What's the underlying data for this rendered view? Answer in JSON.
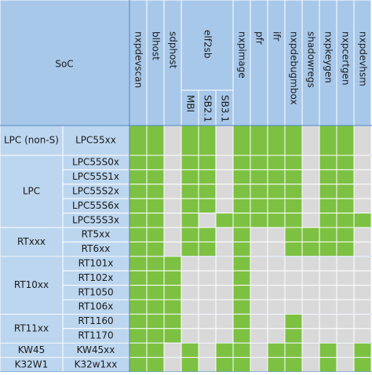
{
  "header": {
    "soc": "SoC",
    "tools": [
      {
        "name": "nxpdevscan"
      },
      {
        "name": "blhost"
      },
      {
        "name": "sdphost"
      },
      {
        "name": "elf2sb",
        "sub": [
          "MBI",
          "SB2.1",
          "SB3.1"
        ]
      },
      {
        "name": "nxpimage"
      },
      {
        "name": "pfr"
      },
      {
        "name": "ifr"
      },
      {
        "name": "nxpdebugmbox"
      },
      {
        "name": "shadowregs"
      },
      {
        "name": "nxpkeygen"
      },
      {
        "name": "nxpcertgen"
      },
      {
        "name": "nxpdevhsm"
      }
    ]
  },
  "groups": [
    {
      "family": "LPC (non-S)",
      "chips": [
        "LPC55xx"
      ]
    },
    {
      "family": "LPC",
      "chips": [
        "LPC55S0x",
        "LPC55S1x",
        "LPC55S2x",
        "LPC55S6x",
        "LPC55S3x"
      ]
    },
    {
      "family": "RTxxx",
      "chips": [
        "RT5xx",
        "RT6xx"
      ]
    },
    {
      "family": "RT10xx",
      "chips": [
        "RT101x",
        "RT102x",
        "RT1050",
        "RT106x"
      ]
    },
    {
      "family": "RT11xx",
      "chips": [
        "RT1160",
        "RT1170"
      ]
    },
    {
      "family": "KW45",
      "chips": [
        "KW45xx"
      ]
    },
    {
      "family": "K32W1",
      "chips": [
        "K32w1xx"
      ]
    }
  ],
  "support": [
    [
      1,
      1,
      0,
      1,
      1,
      0,
      1,
      1,
      1,
      1,
      0,
      1,
      1,
      0
    ],
    [
      1,
      1,
      0,
      1,
      1,
      0,
      1,
      1,
      1,
      1,
      0,
      1,
      1,
      0
    ],
    [
      1,
      1,
      0,
      1,
      1,
      0,
      1,
      1,
      1,
      1,
      0,
      1,
      1,
      0
    ],
    [
      1,
      1,
      0,
      1,
      1,
      0,
      1,
      1,
      1,
      1,
      0,
      1,
      1,
      0
    ],
    [
      1,
      1,
      0,
      1,
      1,
      0,
      1,
      1,
      1,
      1,
      0,
      1,
      1,
      0
    ],
    [
      1,
      1,
      0,
      1,
      0,
      1,
      1,
      1,
      1,
      1,
      0,
      1,
      1,
      1
    ],
    [
      1,
      1,
      0,
      1,
      1,
      0,
      1,
      0,
      0,
      1,
      1,
      1,
      1,
      0
    ],
    [
      1,
      1,
      0,
      1,
      1,
      0,
      1,
      0,
      0,
      1,
      1,
      1,
      1,
      0
    ],
    [
      1,
      1,
      1,
      0,
      0,
      0,
      1,
      0,
      0,
      0,
      0,
      0,
      0,
      0
    ],
    [
      1,
      1,
      1,
      0,
      0,
      0,
      1,
      0,
      0,
      0,
      0,
      0,
      0,
      0
    ],
    [
      1,
      1,
      1,
      0,
      0,
      0,
      1,
      0,
      0,
      0,
      0,
      0,
      0,
      0
    ],
    [
      1,
      1,
      1,
      0,
      0,
      0,
      1,
      0,
      0,
      0,
      0,
      0,
      0,
      0
    ],
    [
      1,
      1,
      1,
      0,
      0,
      0,
      1,
      0,
      0,
      1,
      0,
      0,
      0,
      0
    ],
    [
      1,
      1,
      1,
      0,
      0,
      0,
      1,
      0,
      0,
      1,
      0,
      0,
      0,
      0
    ],
    [
      1,
      1,
      0,
      1,
      0,
      1,
      1,
      0,
      1,
      1,
      0,
      1,
      0,
      1
    ],
    [
      1,
      1,
      0,
      1,
      0,
      1,
      1,
      0,
      1,
      1,
      0,
      1,
      0,
      1
    ]
  ]
}
